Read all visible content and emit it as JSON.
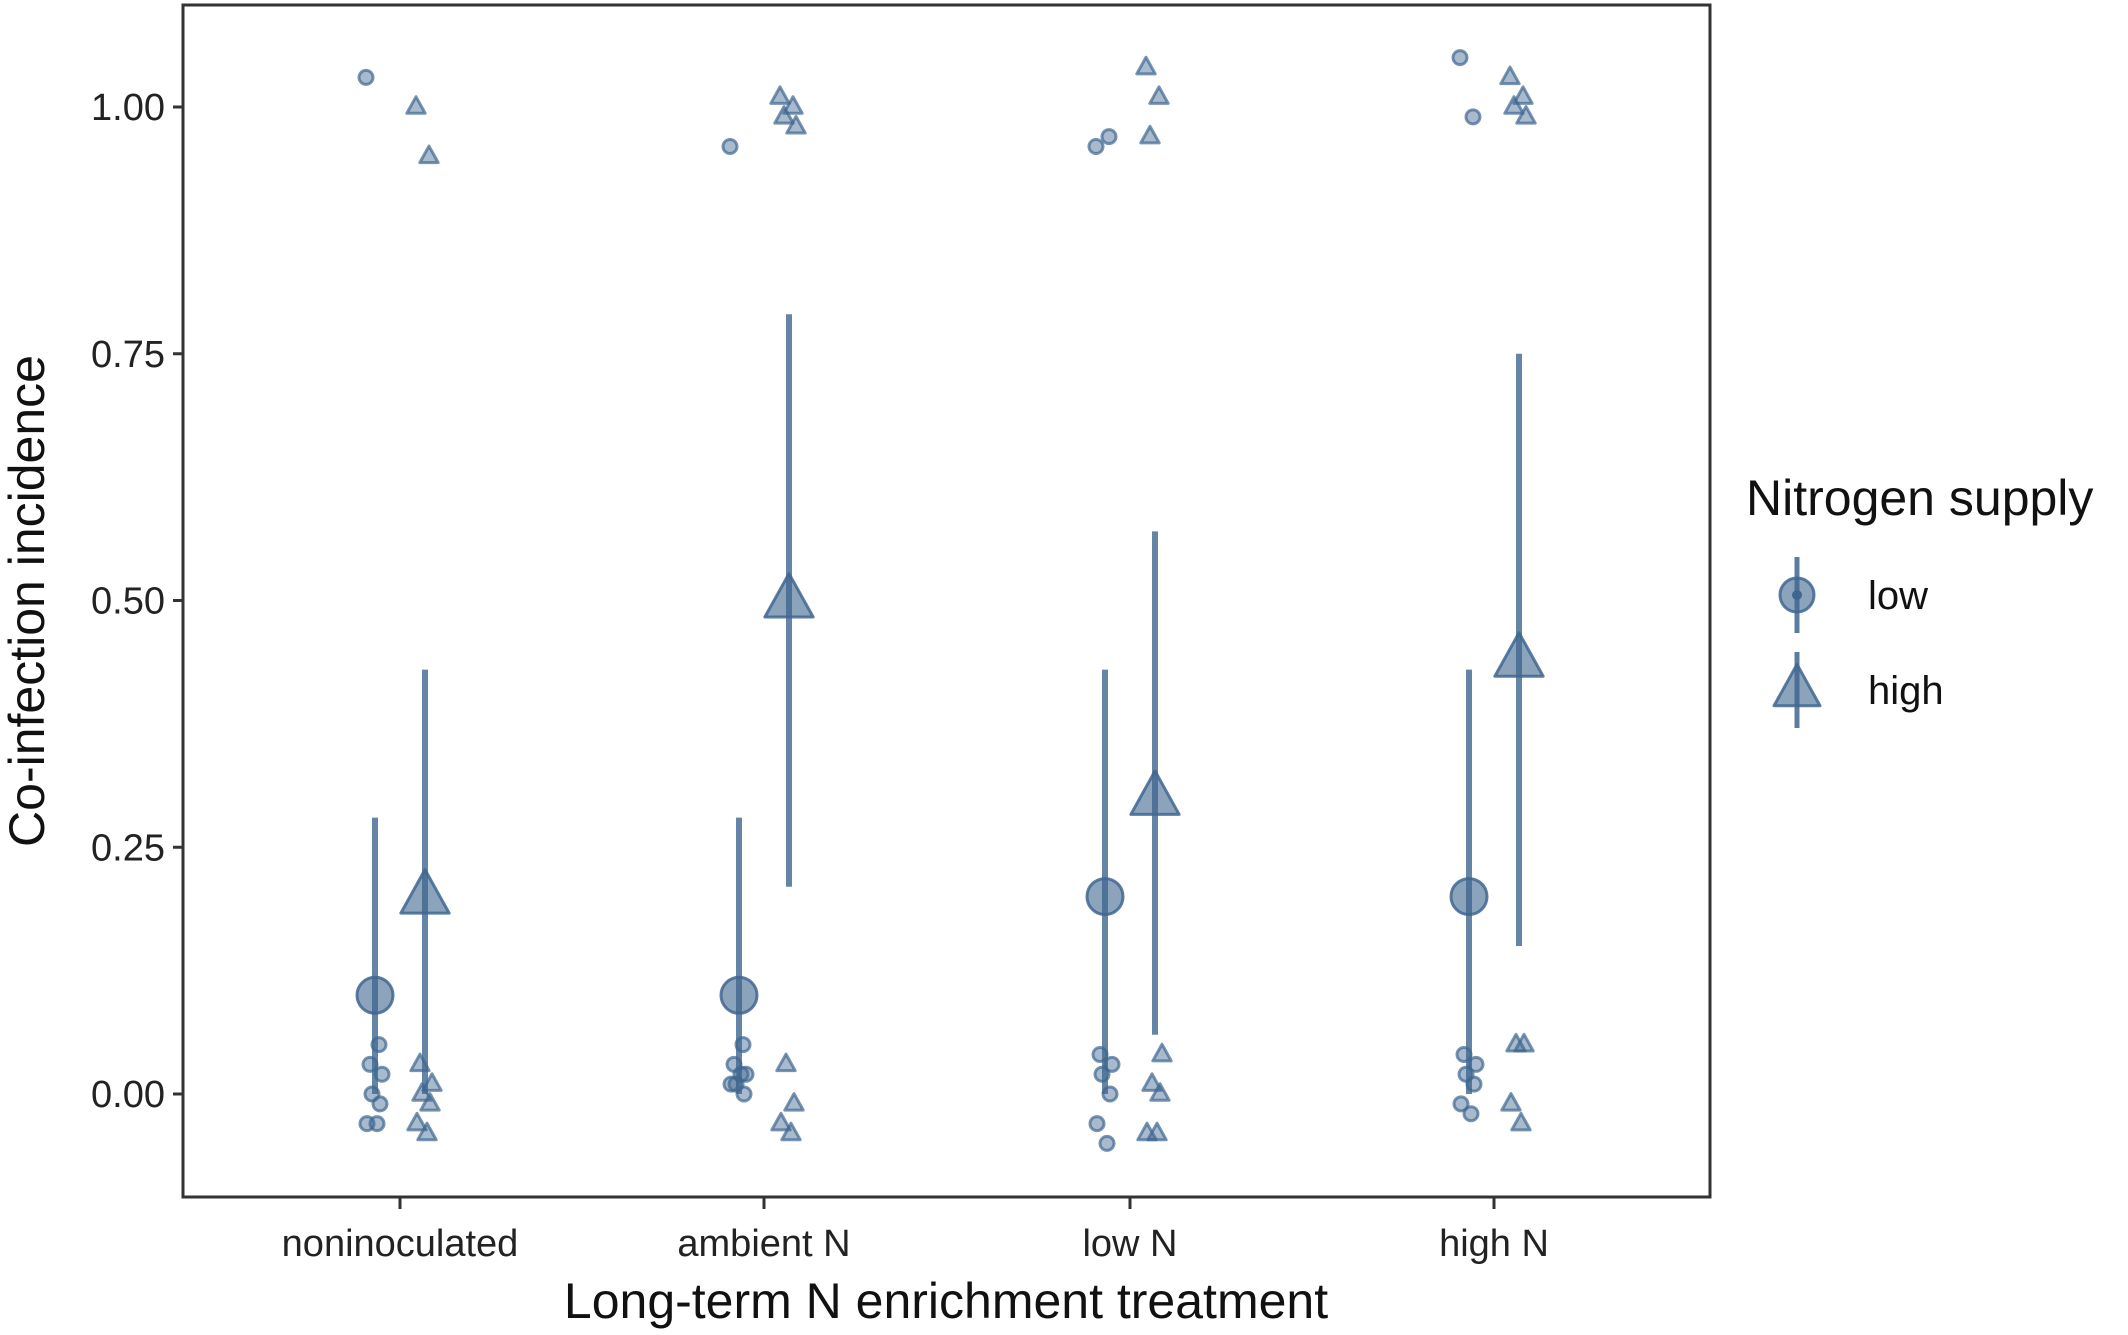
{
  "chart_data": {
    "type": "scatter",
    "xlabel": "Long-term N enrichment treatment",
    "ylabel": "Co-infection incidence",
    "categories": [
      "noninoculated",
      "ambient N",
      "low N",
      "high N"
    ],
    "yticks": [
      "0.00",
      "0.25",
      "0.50",
      "0.75",
      "1.00"
    ],
    "ylim": [
      -0.105,
      1.105
    ],
    "grid": false,
    "legend": {
      "title": "Nitrogen supply",
      "position": "right",
      "entries": [
        {
          "label": "low",
          "shape": "circle"
        },
        {
          "label": "high",
          "shape": "triangle"
        }
      ]
    },
    "color": "#3f6690",
    "series": [
      {
        "name": "low",
        "shape": "circle",
        "means": [
          0.1,
          0.1,
          0.2,
          0.2
        ],
        "ci_lower": [
          0.0,
          0.0,
          0.0,
          0.0
        ],
        "ci_upper": [
          0.28,
          0.28,
          0.43,
          0.43
        ],
        "raw": [
          [
            1.03,
            0.05,
            0.03,
            0.02,
            0.0,
            -0.01,
            -0.03,
            -0.03
          ],
          [
            0.96,
            0.05,
            0.03,
            0.02,
            0.01,
            0.0,
            0.01,
            0.02
          ],
          [
            0.96,
            0.97,
            0.04,
            0.03,
            0.02,
            0.0,
            -0.03,
            -0.05
          ],
          [
            1.05,
            0.99,
            0.04,
            0.03,
            0.02,
            0.01,
            -0.01,
            -0.02
          ]
        ]
      },
      {
        "name": "high",
        "shape": "triangle",
        "means": [
          0.2,
          0.5,
          0.3,
          0.44
        ],
        "ci_lower": [
          0.0,
          0.21,
          0.06,
          0.15
        ],
        "ci_upper": [
          0.43,
          0.79,
          0.57,
          0.75
        ],
        "raw": [
          [
            1.0,
            0.95,
            0.03,
            0.01,
            0.0,
            -0.01,
            -0.03,
            -0.04
          ],
          [
            1.01,
            1.0,
            0.99,
            0.98,
            0.03,
            -0.01,
            -0.03,
            -0.04
          ],
          [
            1.04,
            1.01,
            0.97,
            0.04,
            0.01,
            0.0,
            -0.04,
            -0.04
          ],
          [
            1.03,
            1.01,
            1.0,
            0.99,
            0.05,
            0.05,
            -0.01,
            -0.03
          ]
        ]
      }
    ]
  }
}
